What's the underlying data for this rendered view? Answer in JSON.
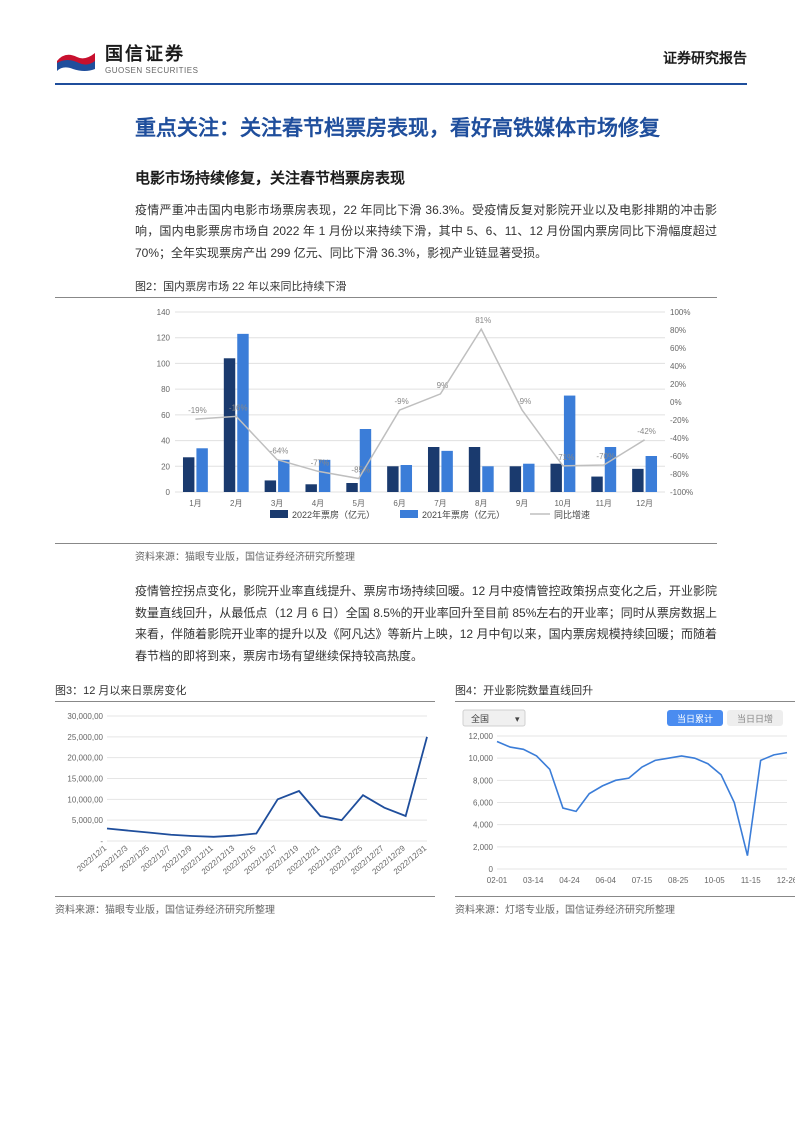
{
  "header": {
    "logo_cn": "国信证券",
    "logo_en": "GUOSEN SECURITIES",
    "report_type": "证券研究报告"
  },
  "main_title": "重点关注：关注春节档票房表现，看好高铁媒体市场修复",
  "section1_heading": "电影市场持续修复，关注春节档票房表现",
  "para1": "疫情严重冲击国内电影市场票房表现，22 年同比下滑 36.3%。受疫情反复对影院开业以及电影排期的冲击影响，国内电影票房市场自 2022 年 1 月份以来持续下滑，其中 5、6、11、12 月份国内票房同比下滑幅度超过 70%；全年实现票房产出 299 亿元、同比下滑 36.3%，影视产业链显著受损。",
  "chart2": {
    "label": "图2：国内票房市场 22 年以来同比持续下滑",
    "type": "bar-line-combo",
    "months": [
      "1月",
      "2月",
      "3月",
      "4月",
      "5月",
      "6月",
      "7月",
      "8月",
      "9月",
      "10月",
      "11月",
      "12月"
    ],
    "series_2022": {
      "name": "2022年票房（亿元）",
      "color": "#1a3a6e",
      "values": [
        27,
        104,
        9,
        6,
        7,
        20,
        35,
        35,
        20,
        22,
        12,
        18
      ]
    },
    "series_2021": {
      "name": "2021年票房（亿元）",
      "color": "#3b7dd8",
      "values": [
        34,
        123,
        25,
        25,
        49,
        21,
        32,
        20,
        22,
        75,
        35,
        28
      ]
    },
    "series_yoy": {
      "name": "同比增速",
      "color": "#bfbfbf",
      "values": [
        -19,
        -16,
        -64,
        -77,
        -85,
        -9,
        9,
        81,
        -9,
        -71,
        -70,
        -42
      ],
      "labels": [
        "-19%",
        "-16%",
        "-64%",
        "-77%",
        "-85%",
        "-9%",
        "9%",
        "81%",
        "-9%",
        "-71%",
        "-70%",
        "-42%"
      ]
    },
    "y_left": {
      "min": 0,
      "max": 140,
      "step": 20
    },
    "y_right": {
      "min": -100,
      "max": 100,
      "step": 20
    },
    "grid_color": "#e0e0e0",
    "background": "#ffffff",
    "source": "资料来源：猫眼专业版，国信证券经济研究所整理"
  },
  "para2": "疫情管控拐点变化，影院开业率直线提升、票房市场持续回暖。12 月中疫情管控政策拐点变化之后，开业影院数量直线回升，从最低点（12 月 6 日）全国 8.5%的开业率回升至目前 85%左右的开业率；同时从票房数据上来看，伴随着影院开业率的提升以及《阿凡达》等新片上映，12 月中旬以来，国内票房规模持续回暖；而随着春节档的即将到来，票房市场有望继续保持较高热度。",
  "chart3": {
    "label": "图3：12 月以来日票房变化",
    "type": "line",
    "color": "#1f4e9c",
    "y": {
      "min": 0,
      "max": 30000000,
      "ticks": [
        "-",
        "5,000,00",
        "10,000,00",
        "15,000,00",
        "20,000,00",
        "25,000,00",
        "30,000,00"
      ]
    },
    "x_labels": [
      "2022/12/1",
      "2022/12/3",
      "2022/12/5",
      "2022/12/7",
      "2022/12/9",
      "2022/12/11",
      "2022/12/13",
      "2022/12/15",
      "2022/12/17",
      "2022/12/19",
      "2022/12/21",
      "2022/12/23",
      "2022/12/25",
      "2022/12/27",
      "2022/12/29",
      "2022/12/31"
    ],
    "values": [
      3000000,
      2500000,
      2000000,
      1500000,
      1200000,
      1000000,
      1300000,
      1800000,
      10000000,
      12000000,
      6000000,
      5000000,
      11000000,
      8000000,
      6000000,
      25000000
    ],
    "grid_color": "#e5e5e5",
    "source": "资料来源：猫眼专业版，国信证券经济研究所整理"
  },
  "chart4": {
    "label": "图4：开业影院数量直线回升",
    "type": "line",
    "color": "#3b7dd8",
    "dropdown": "全国",
    "tab_active": "当日累计",
    "tab_inactive": "当日日增",
    "y": {
      "min": 0,
      "max": 12000,
      "ticks": [
        "0",
        "2,000",
        "4,000",
        "6,000",
        "8,000",
        "10,000",
        "12,000"
      ]
    },
    "x_labels": [
      "02-01",
      "03-14",
      "04-24",
      "06-04",
      "07-15",
      "08-25",
      "10-05",
      "11-15",
      "12-26"
    ],
    "points": [
      [
        0,
        11500
      ],
      [
        5,
        11000
      ],
      [
        10,
        10800
      ],
      [
        15,
        10200
      ],
      [
        20,
        9000
      ],
      [
        25,
        5500
      ],
      [
        30,
        5200
      ],
      [
        35,
        6800
      ],
      [
        40,
        7500
      ],
      [
        45,
        8000
      ],
      [
        50,
        8200
      ],
      [
        55,
        9200
      ],
      [
        60,
        9800
      ],
      [
        65,
        10000
      ],
      [
        70,
        10200
      ],
      [
        75,
        10000
      ],
      [
        80,
        9500
      ],
      [
        85,
        8500
      ],
      [
        90,
        6000
      ],
      [
        95,
        1200
      ],
      [
        100,
        9800
      ],
      [
        105,
        10300
      ],
      [
        110,
        10500
      ]
    ],
    "grid_color": "#e5e5e5",
    "source": "资料来源：灯塔专业版，国信证券经济研究所整理"
  }
}
